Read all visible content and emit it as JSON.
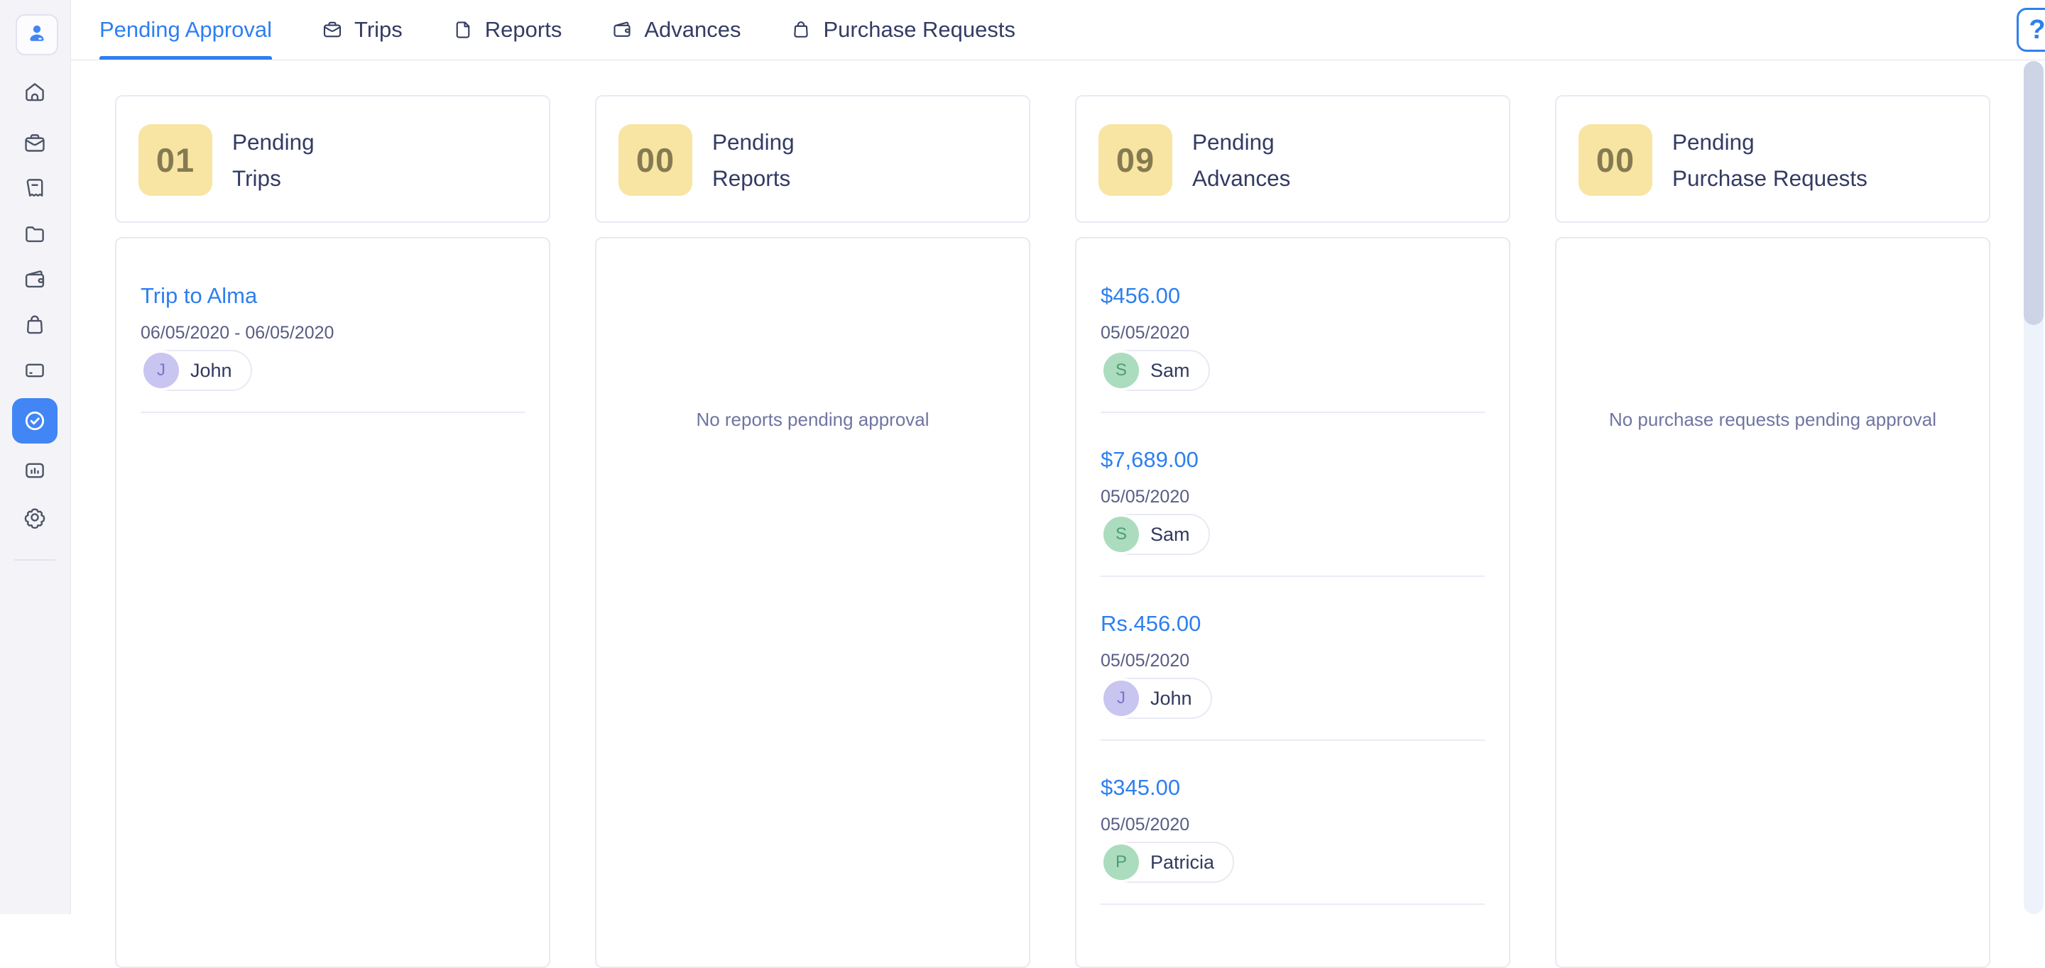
{
  "sidebar": {
    "items": [
      {
        "icon": "home"
      },
      {
        "icon": "trips"
      },
      {
        "icon": "expenses"
      },
      {
        "icon": "reports"
      },
      {
        "icon": "advances"
      },
      {
        "icon": "purchase-requests"
      },
      {
        "icon": "cards"
      },
      {
        "icon": "approvals",
        "active": true
      },
      {
        "icon": "analytics"
      },
      {
        "icon": "settings"
      }
    ],
    "profile_icon": "person-icon"
  },
  "header": {
    "tabs": [
      {
        "label": "Pending Approval",
        "active": true
      },
      {
        "label": "Trips",
        "icon": "trips"
      },
      {
        "label": "Reports",
        "icon": "reports"
      },
      {
        "label": "Advances",
        "icon": "advances"
      },
      {
        "label": "Purchase Requests",
        "icon": "purchase-requests"
      }
    ],
    "help_label": "?"
  },
  "board": {
    "columns": [
      {
        "count": "01",
        "label_line1": "Pending",
        "label_line2": "Trips",
        "items": [
          {
            "title": "Trip to Alma",
            "date": "06/05/2020 - 06/05/2020",
            "user": "John",
            "initial": "J",
            "avatar": "lavender"
          }
        ]
      },
      {
        "count": "00",
        "label_line1": "Pending",
        "label_line2": "Reports",
        "empty_text": "No reports pending approval",
        "items": []
      },
      {
        "count": "09",
        "label_line1": "Pending",
        "label_line2": "Advances",
        "items": [
          {
            "title": "$456.00",
            "date": "05/05/2020",
            "user": "Sam",
            "initial": "S",
            "avatar": "green"
          },
          {
            "title": "$7,689.00",
            "date": "05/05/2020",
            "user": "Sam",
            "initial": "S",
            "avatar": "green"
          },
          {
            "title": "Rs.456.00",
            "date": "05/05/2020",
            "user": "John",
            "initial": "J",
            "avatar": "lavender"
          },
          {
            "title": "$345.00",
            "date": "05/05/2020",
            "user": "Patricia",
            "initial": "P",
            "avatar": "green"
          }
        ]
      },
      {
        "count": "00",
        "label_line1": "Pending",
        "label_line2": "Purchase Requests",
        "empty_text": "No purchase requests pending approval",
        "items": []
      }
    ]
  },
  "colors": {
    "accent_blue": "#2e7ff0",
    "badge_bg": "#f8e5a3",
    "badge_text": "#857b50",
    "navy_text": "#333b63",
    "date_text": "#585d85",
    "empty_text": "#6f75a1",
    "avatar_green": "#abdcbe",
    "avatar_green_text": "#4f9c72",
    "avatar_lavender": "#c9c5f1",
    "avatar_lavender_text": "#7b75c8",
    "sidebar_bg": "#f4f4f8",
    "active_item_bg": "#4286f5"
  }
}
